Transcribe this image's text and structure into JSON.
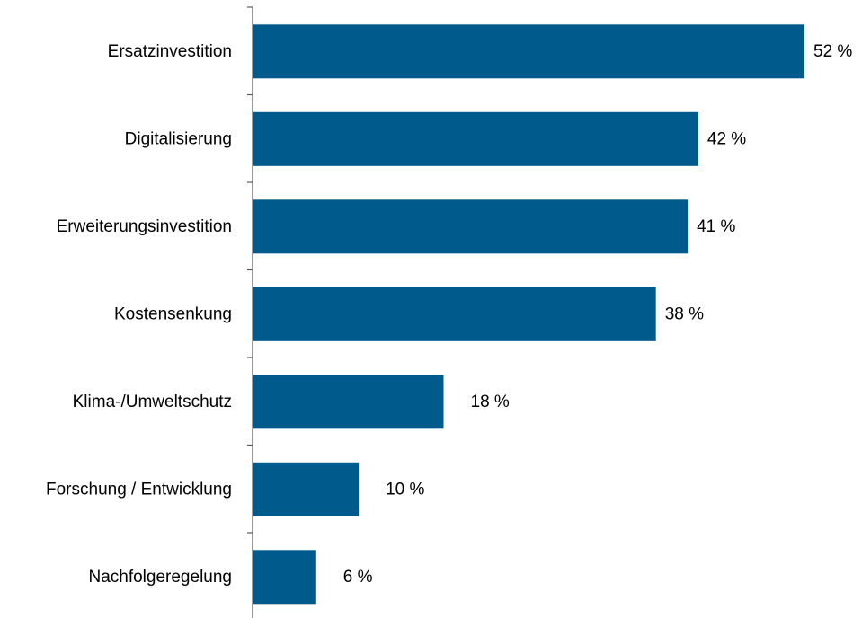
{
  "chart_data": {
    "type": "bar",
    "orientation": "horizontal",
    "categories": [
      "Ersatzinvestition",
      "Digitalisierung",
      "Erweiterungsinvestition",
      "Kostensenkung",
      "Klima-/Umweltschutz",
      "Forschung / Entwicklung",
      "Nachfolgeregelung"
    ],
    "values": [
      52,
      42,
      41,
      38,
      18,
      10,
      6
    ],
    "value_labels": [
      "52 %",
      "42 %",
      "41 %",
      "38 %",
      "18 %",
      "10 %",
      "6 %"
    ],
    "unit": "%",
    "xlim": [
      0,
      52
    ],
    "grid": false,
    "legend": "none",
    "bar_color": "#005a8c"
  }
}
